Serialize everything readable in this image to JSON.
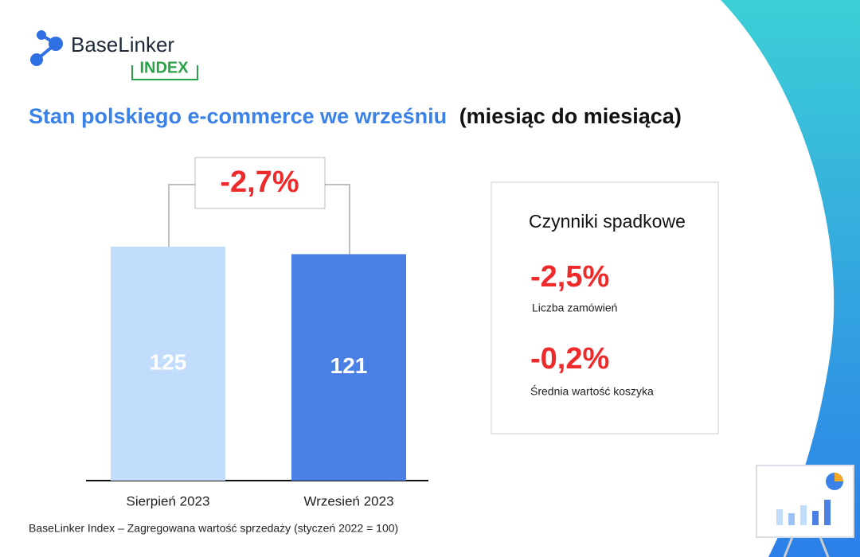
{
  "brand": {
    "name": "BaseLinker",
    "badge": "INDEX"
  },
  "chart_data": {
    "type": "bar",
    "title": "Stan polskiego e-commerce we wrześniu",
    "title_suffix": "(miesiąc do miesiąca)",
    "categories": [
      "Sierpień 2023",
      "Wrzesień 2023"
    ],
    "series": [
      {
        "name": "BaseLinker Index",
        "colors": [
          "#c2dcfc",
          "#4a80e4"
        ],
        "values": [
          125,
          121
        ]
      }
    ],
    "change_label": "-2,7%",
    "factors": {
      "title": "Czynniki spadkowe",
      "items": [
        {
          "value": "-2,5%",
          "label": "Liczba zamówień"
        },
        {
          "value": "-0,2%",
          "label": "Średnia wartość koszyka"
        }
      ]
    },
    "footnote": "BaseLinker Index – Zagregowana wartość sprzedaży (styczeń 2022 = 100)"
  }
}
